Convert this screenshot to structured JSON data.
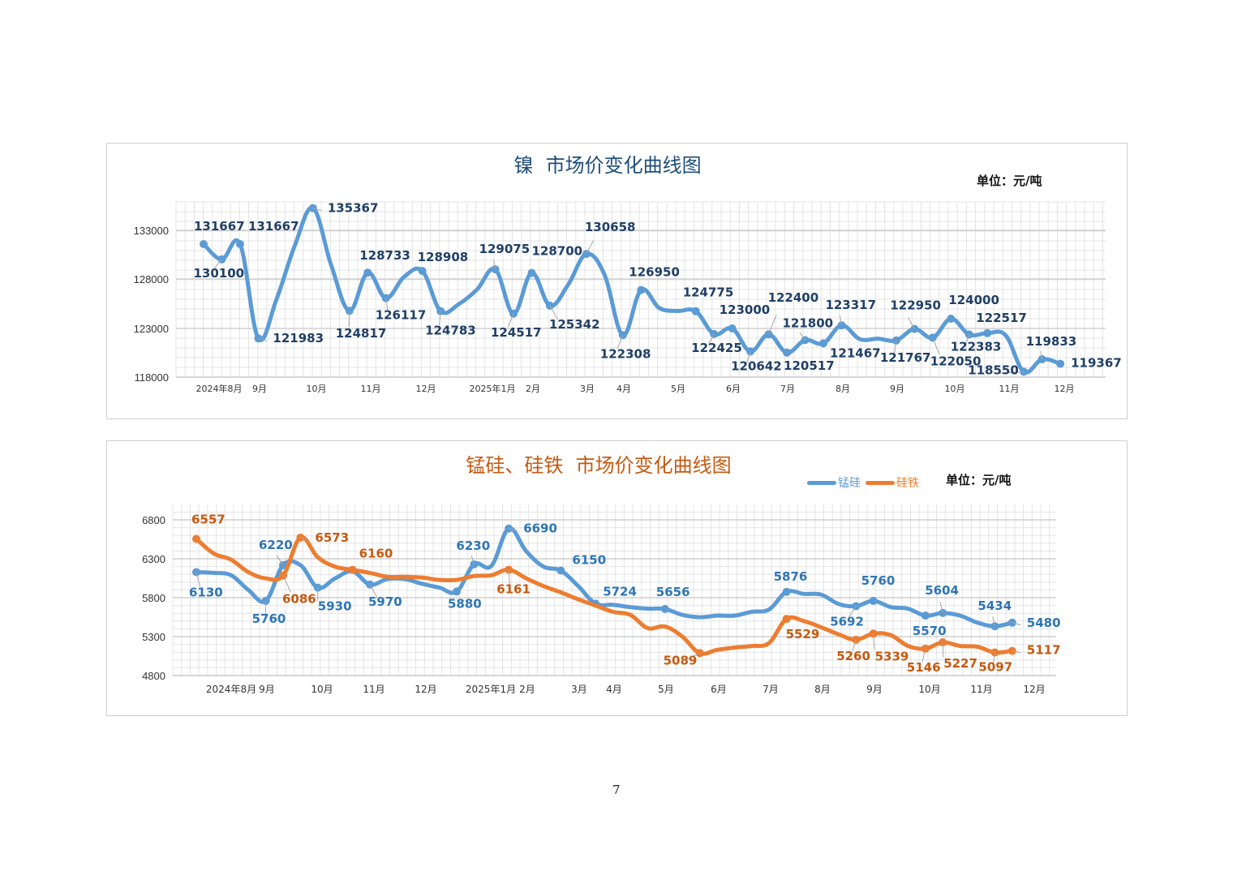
{
  "page_number": "7",
  "chart_data": [
    {
      "type": "line",
      "title": "镍  市场价变化曲线图",
      "unit": "单位：元/吨",
      "ylim": [
        118000,
        136000
      ],
      "yticks": [
        "118000",
        "123000",
        "128000",
        "133000"
      ],
      "xticks": [
        "2024年8月",
        "9月",
        "10月",
        "11月",
        "12月",
        "2025年1月",
        "2月",
        "3月",
        "4月",
        "5月",
        "6月",
        "7月",
        "8月",
        "9月",
        "10月",
        "11月",
        "12月"
      ],
      "grid": true,
      "colors": {
        "line": "#5b9bd5",
        "label": "#1f3f66",
        "title": "#1f4e79"
      },
      "x": [
        "2024-07-21",
        "2024-08-01",
        "2024-08-11",
        "2024-08-21",
        "2024-09-01",
        "2024-09-11",
        "2024-09-21",
        "2024-10-01",
        "2024-10-11",
        "2024-10-21",
        "2024-11-01",
        "2024-11-11",
        "2024-11-21",
        "2024-12-01",
        "2024-12-11",
        "2024-12-21",
        "2025-01-01",
        "2025-01-11",
        "2025-01-21",
        "2025-02-01",
        "2025-02-11",
        "2025-02-21",
        "2025-03-01",
        "2025-03-11",
        "2025-03-21",
        "2025-04-01",
        "2025-04-11",
        "2025-04-21",
        "2025-05-01",
        "2025-05-11",
        "2025-05-21",
        "2025-06-01",
        "2025-06-11",
        "2025-06-21",
        "2025-07-01",
        "2025-07-11",
        "2025-07-21",
        "2025-08-01",
        "2025-08-11",
        "2025-08-21",
        "2025-09-01",
        "2025-09-11",
        "2025-09-21",
        "2025-10-01",
        "2025-10-11",
        "2025-10-21",
        "2025-11-01",
        "2025-11-11"
      ],
      "series": [
        {
          "values": [
            131667,
            130100,
            131667,
            121983,
            126000,
            131500,
            135367,
            129500,
            124817,
            128733,
            126117,
            128300,
            128908,
            124783,
            125500,
            127000,
            129075,
            124517,
            128700,
            125342,
            127500,
            130658,
            128500,
            122308,
            126950,
            125100,
            124800,
            124775,
            122425,
            123000,
            120642,
            122400,
            120517,
            121800,
            121467,
            123317,
            121900,
            121950,
            121767,
            122950,
            122050,
            124000,
            122383,
            122517,
            122300,
            118550,
            119833,
            119367
          ],
          "marked": [
            1,
            1,
            1,
            1,
            0,
            0,
            1,
            0,
            1,
            1,
            1,
            0,
            1,
            1,
            0,
            0,
            1,
            1,
            1,
            1,
            0,
            1,
            0,
            1,
            1,
            0,
            0,
            1,
            1,
            1,
            1,
            1,
            1,
            1,
            1,
            1,
            0,
            0,
            1,
            1,
            1,
            1,
            1,
            1,
            0,
            1,
            1,
            1
          ]
        }
      ]
    },
    {
      "type": "line",
      "title": "锰硅、硅铁  市场价变化曲线图",
      "unit": "单位：元/吨",
      "ylim": [
        4800,
        7000
      ],
      "yticks": [
        "4800",
        "5300",
        "5800",
        "6300",
        "6800"
      ],
      "xticks": [
        "2024年8月",
        "9月",
        "10月",
        "11月",
        "12月",
        "2025年1月",
        "2月",
        "3月",
        "4月",
        "5月",
        "6月",
        "7月",
        "8月",
        "9月",
        "10月",
        "11月",
        "12月"
      ],
      "grid": true,
      "legend": "top-right",
      "colors": {
        "title": "#c55a11"
      },
      "x": [
        "2024-07-21",
        "2024-08-01",
        "2024-08-11",
        "2024-08-21",
        "2024-09-01",
        "2024-09-11",
        "2024-09-21",
        "2024-10-01",
        "2024-10-11",
        "2024-10-21",
        "2024-11-01",
        "2024-11-11",
        "2024-11-21",
        "2024-12-01",
        "2024-12-11",
        "2024-12-21",
        "2025-01-01",
        "2025-01-11",
        "2025-01-21",
        "2025-02-01",
        "2025-02-11",
        "2025-02-21",
        "2025-03-01",
        "2025-03-11",
        "2025-03-21",
        "2025-04-01",
        "2025-04-11",
        "2025-04-21",
        "2025-05-01",
        "2025-05-11",
        "2025-05-21",
        "2025-06-01",
        "2025-06-11",
        "2025-06-21",
        "2025-07-01",
        "2025-07-11",
        "2025-07-21",
        "2025-08-01",
        "2025-08-11",
        "2025-08-21",
        "2025-09-01",
        "2025-09-11",
        "2025-09-21",
        "2025-10-01",
        "2025-10-11",
        "2025-10-21",
        "2025-11-01",
        "2025-11-11"
      ],
      "series": [
        {
          "name": "锰硅",
          "color": "#5b9bd5",
          "label_color": "#2e75b6",
          "values": [
            6130,
            6120,
            6090,
            5900,
            5760,
            6220,
            6220,
            5930,
            6050,
            6140,
            5970,
            6040,
            6040,
            5980,
            5930,
            5880,
            6230,
            6210,
            6690,
            6400,
            6200,
            6150,
            5950,
            5724,
            5710,
            5680,
            5660,
            5656,
            5580,
            5550,
            5570,
            5570,
            5620,
            5650,
            5876,
            5850,
            5840,
            5720,
            5692,
            5760,
            5680,
            5660,
            5570,
            5604,
            5570,
            5480,
            5434,
            5480
          ],
          "marked": [
            1,
            0,
            0,
            0,
            1,
            1,
            0,
            1,
            0,
            0,
            1,
            0,
            0,
            0,
            0,
            1,
            1,
            0,
            1,
            0,
            0,
            1,
            0,
            1,
            0,
            0,
            0,
            1,
            0,
            0,
            0,
            0,
            0,
            0,
            1,
            0,
            0,
            0,
            1,
            1,
            0,
            0,
            1,
            1,
            0,
            0,
            1,
            1
          ]
        },
        {
          "name": "硅铁",
          "color": "#ed7d31",
          "label_color": "#c55a11",
          "values": [
            6557,
            6370,
            6290,
            6130,
            6050,
            6086,
            6573,
            6320,
            6200,
            6160,
            6120,
            6070,
            6070,
            6060,
            6030,
            6030,
            6080,
            6090,
            6161,
            6050,
            5950,
            5870,
            5780,
            5700,
            5620,
            5580,
            5410,
            5430,
            5300,
            5089,
            5130,
            5160,
            5180,
            5220,
            5529,
            5500,
            5420,
            5330,
            5260,
            5339,
            5320,
            5180,
            5146,
            5227,
            5180,
            5170,
            5097,
            5117
          ],
          "marked": [
            1,
            0,
            0,
            0,
            0,
            1,
            1,
            0,
            0,
            1,
            0,
            0,
            0,
            0,
            0,
            0,
            0,
            0,
            1,
            0,
            0,
            0,
            0,
            0,
            0,
            0,
            0,
            0,
            0,
            1,
            0,
            0,
            0,
            0,
            1,
            0,
            0,
            0,
            1,
            1,
            0,
            0,
            1,
            1,
            0,
            0,
            1,
            1
          ]
        }
      ]
    }
  ]
}
